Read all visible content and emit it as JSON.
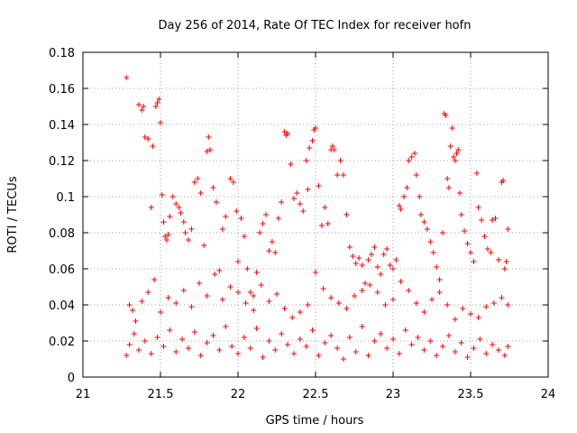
{
  "chart_data": {
    "type": "scatter",
    "title": "Day 256 of 2014, Rate Of TEC Index for receiver hofn",
    "xlabel": "GPS time / hours",
    "ylabel": "ROTI / TECUs",
    "xlim": [
      21,
      24
    ],
    "ylim": [
      0,
      0.18
    ],
    "x_ticks": [
      21,
      21.5,
      22,
      22.5,
      23,
      23.5,
      24
    ],
    "y_ticks": [
      0,
      0.02,
      0.04,
      0.06,
      0.08,
      0.1,
      0.12,
      0.14,
      0.16,
      0.18
    ],
    "x_tick_labels": [
      "21",
      "21.5",
      "22",
      "22.5",
      "23",
      "23.5",
      "24"
    ],
    "y_tick_labels": [
      "0",
      "0.02",
      "0.04",
      "0.06",
      "0.08",
      "0.1",
      "0.12",
      "0.14",
      "0.16",
      "0.18"
    ],
    "grid": true,
    "marker": "+",
    "color": "#ff0000",
    "series": [
      {
        "name": "ROTI",
        "points": [
          [
            21.28,
            0.166
          ],
          [
            21.36,
            0.151
          ],
          [
            21.38,
            0.148
          ],
          [
            21.39,
            0.15
          ],
          [
            21.4,
            0.133
          ],
          [
            21.42,
            0.132
          ],
          [
            21.45,
            0.128
          ],
          [
            21.47,
            0.15
          ],
          [
            21.48,
            0.152
          ],
          [
            21.49,
            0.154
          ],
          [
            21.5,
            0.141
          ],
          [
            21.44,
            0.094
          ],
          [
            21.51,
            0.101
          ],
          [
            21.52,
            0.086
          ],
          [
            21.53,
            0.078
          ],
          [
            21.54,
            0.076
          ],
          [
            21.55,
            0.079
          ],
          [
            21.56,
            0.089
          ],
          [
            21.58,
            0.1
          ],
          [
            21.6,
            0.096
          ],
          [
            21.62,
            0.094
          ],
          [
            21.63,
            0.091
          ],
          [
            21.65,
            0.086
          ],
          [
            21.66,
            0.08
          ],
          [
            21.68,
            0.076
          ],
          [
            21.7,
            0.082
          ],
          [
            21.72,
            0.108
          ],
          [
            21.74,
            0.11
          ],
          [
            21.76,
            0.102
          ],
          [
            21.78,
            0.073
          ],
          [
            21.8,
            0.125
          ],
          [
            21.81,
            0.133
          ],
          [
            21.82,
            0.126
          ],
          [
            21.84,
            0.105
          ],
          [
            21.86,
            0.097
          ],
          [
            21.88,
            0.059
          ],
          [
            21.9,
            0.082
          ],
          [
            21.92,
            0.089
          ],
          [
            21.95,
            0.11
          ],
          [
            21.97,
            0.108
          ],
          [
            21.99,
            0.092
          ],
          [
            22.0,
            0.064
          ],
          [
            22.02,
            0.088
          ],
          [
            22.04,
            0.078
          ],
          [
            22.06,
            0.06
          ],
          [
            22.08,
            0.047
          ],
          [
            22.1,
            0.045
          ],
          [
            22.12,
            0.058
          ],
          [
            22.14,
            0.08
          ],
          [
            22.16,
            0.085
          ],
          [
            22.18,
            0.09
          ],
          [
            22.2,
            0.07
          ],
          [
            22.22,
            0.075
          ],
          [
            22.24,
            0.069
          ],
          [
            22.26,
            0.088
          ],
          [
            22.28,
            0.097
          ],
          [
            22.3,
            0.136
          ],
          [
            22.31,
            0.134
          ],
          [
            22.32,
            0.135
          ],
          [
            22.34,
            0.118
          ],
          [
            22.36,
            0.099
          ],
          [
            22.38,
            0.102
          ],
          [
            22.4,
            0.096
          ],
          [
            22.42,
            0.092
          ],
          [
            22.44,
            0.12
          ],
          [
            22.45,
            0.104
          ],
          [
            22.46,
            0.127
          ],
          [
            22.48,
            0.131
          ],
          [
            22.49,
            0.137
          ],
          [
            22.5,
            0.138
          ],
          [
            22.52,
            0.106
          ],
          [
            22.54,
            0.084
          ],
          [
            22.56,
            0.094
          ],
          [
            22.58,
            0.085
          ],
          [
            22.6,
            0.126
          ],
          [
            22.61,
            0.128
          ],
          [
            22.62,
            0.126
          ],
          [
            22.64,
            0.112
          ],
          [
            22.66,
            0.12
          ],
          [
            22.68,
            0.112
          ],
          [
            22.7,
            0.09
          ],
          [
            22.72,
            0.072
          ],
          [
            22.74,
            0.067
          ],
          [
            22.76,
            0.063
          ],
          [
            22.78,
            0.066
          ],
          [
            22.8,
            0.062
          ],
          [
            22.82,
            0.052
          ],
          [
            22.84,
            0.065
          ],
          [
            22.86,
            0.068
          ],
          [
            22.88,
            0.072
          ],
          [
            22.9,
            0.061
          ],
          [
            22.92,
            0.057
          ],
          [
            22.94,
            0.068
          ],
          [
            22.96,
            0.071
          ],
          [
            22.98,
            0.062
          ],
          [
            23.0,
            0.06
          ],
          [
            23.02,
            0.065
          ],
          [
            23.04,
            0.095
          ],
          [
            23.05,
            0.093
          ],
          [
            23.07,
            0.1
          ],
          [
            23.09,
            0.105
          ],
          [
            23.1,
            0.12
          ],
          [
            23.12,
            0.122
          ],
          [
            23.14,
            0.124
          ],
          [
            23.15,
            0.112
          ],
          [
            23.17,
            0.1
          ],
          [
            23.18,
            0.09
          ],
          [
            23.2,
            0.086
          ],
          [
            23.22,
            0.082
          ],
          [
            23.24,
            0.075
          ],
          [
            23.26,
            0.069
          ],
          [
            23.28,
            0.061
          ],
          [
            23.3,
            0.054
          ],
          [
            23.32,
            0.08
          ],
          [
            23.33,
            0.146
          ],
          [
            23.34,
            0.145
          ],
          [
            23.35,
            0.11
          ],
          [
            23.36,
            0.105
          ],
          [
            23.37,
            0.128
          ],
          [
            23.38,
            0.138
          ],
          [
            23.39,
            0.122
          ],
          [
            23.4,
            0.12
          ],
          [
            23.41,
            0.124
          ],
          [
            23.42,
            0.126
          ],
          [
            23.43,
            0.102
          ],
          [
            23.44,
            0.09
          ],
          [
            23.46,
            0.081
          ],
          [
            23.48,
            0.074
          ],
          [
            23.5,
            0.069
          ],
          [
            23.52,
            0.064
          ],
          [
            23.54,
            0.113
          ],
          [
            23.55,
            0.094
          ],
          [
            23.57,
            0.087
          ],
          [
            23.59,
            0.078
          ],
          [
            23.61,
            0.071
          ],
          [
            23.63,
            0.069
          ],
          [
            23.64,
            0.087
          ],
          [
            23.66,
            0.088
          ],
          [
            23.68,
            0.065
          ],
          [
            23.7,
            0.108
          ],
          [
            23.71,
            0.109
          ],
          [
            23.72,
            0.06
          ],
          [
            23.73,
            0.064
          ],
          [
            23.74,
            0.082
          ],
          [
            21.3,
            0.04
          ],
          [
            21.32,
            0.037
          ],
          [
            21.34,
            0.031
          ],
          [
            21.38,
            0.042
          ],
          [
            21.42,
            0.047
          ],
          [
            21.46,
            0.054
          ],
          [
            21.5,
            0.036
          ],
          [
            21.55,
            0.044
          ],
          [
            21.6,
            0.041
          ],
          [
            21.65,
            0.048
          ],
          [
            21.7,
            0.039
          ],
          [
            21.75,
            0.052
          ],
          [
            21.8,
            0.045
          ],
          [
            21.85,
            0.057
          ],
          [
            21.9,
            0.043
          ],
          [
            21.95,
            0.05
          ],
          [
            22.0,
            0.047
          ],
          [
            22.05,
            0.041
          ],
          [
            22.1,
            0.037
          ],
          [
            22.15,
            0.051
          ],
          [
            22.2,
            0.042
          ],
          [
            22.25,
            0.046
          ],
          [
            22.3,
            0.038
          ],
          [
            22.35,
            0.033
          ],
          [
            22.4,
            0.036
          ],
          [
            22.45,
            0.04
          ],
          [
            22.5,
            0.058
          ],
          [
            22.55,
            0.049
          ],
          [
            22.6,
            0.044
          ],
          [
            22.65,
            0.041
          ],
          [
            22.7,
            0.038
          ],
          [
            22.75,
            0.045
          ],
          [
            22.8,
            0.048
          ],
          [
            22.85,
            0.051
          ],
          [
            22.9,
            0.047
          ],
          [
            22.95,
            0.04
          ],
          [
            23.0,
            0.043
          ],
          [
            23.05,
            0.053
          ],
          [
            23.1,
            0.048
          ],
          [
            23.15,
            0.041
          ],
          [
            23.2,
            0.036
          ],
          [
            23.25,
            0.043
          ],
          [
            23.3,
            0.047
          ],
          [
            23.35,
            0.04
          ],
          [
            23.4,
            0.032
          ],
          [
            23.45,
            0.038
          ],
          [
            23.5,
            0.035
          ],
          [
            23.55,
            0.033
          ],
          [
            23.6,
            0.039
          ],
          [
            23.65,
            0.041
          ],
          [
            23.7,
            0.044
          ],
          [
            23.74,
            0.04
          ],
          [
            21.28,
            0.012
          ],
          [
            21.3,
            0.018
          ],
          [
            21.33,
            0.024
          ],
          [
            21.36,
            0.015
          ],
          [
            21.4,
            0.02
          ],
          [
            21.44,
            0.013
          ],
          [
            21.48,
            0.022
          ],
          [
            21.52,
            0.017
          ],
          [
            21.56,
            0.026
          ],
          [
            21.6,
            0.014
          ],
          [
            21.64,
            0.021
          ],
          [
            21.68,
            0.016
          ],
          [
            21.72,
            0.025
          ],
          [
            21.76,
            0.012
          ],
          [
            21.8,
            0.019
          ],
          [
            21.84,
            0.023
          ],
          [
            21.88,
            0.015
          ],
          [
            21.92,
            0.028
          ],
          [
            21.96,
            0.017
          ],
          [
            22.0,
            0.013
          ],
          [
            22.04,
            0.022
          ],
          [
            22.08,
            0.016
          ],
          [
            22.12,
            0.027
          ],
          [
            22.16,
            0.011
          ],
          [
            22.2,
            0.02
          ],
          [
            22.24,
            0.015
          ],
          [
            22.28,
            0.024
          ],
          [
            22.32,
            0.018
          ],
          [
            22.36,
            0.013
          ],
          [
            22.4,
            0.021
          ],
          [
            22.44,
            0.017
          ],
          [
            22.48,
            0.026
          ],
          [
            22.52,
            0.012
          ],
          [
            22.56,
            0.019
          ],
          [
            22.6,
            0.023
          ],
          [
            22.64,
            0.016
          ],
          [
            22.68,
            0.01
          ],
          [
            22.72,
            0.022
          ],
          [
            22.76,
            0.014
          ],
          [
            22.8,
            0.028
          ],
          [
            22.84,
            0.012
          ],
          [
            22.88,
            0.02
          ],
          [
            22.92,
            0.024
          ],
          [
            22.96,
            0.016
          ],
          [
            23.0,
            0.021
          ],
          [
            23.04,
            0.013
          ],
          [
            23.08,
            0.026
          ],
          [
            23.12,
            0.018
          ],
          [
            23.16,
            0.022
          ],
          [
            23.2,
            0.015
          ],
          [
            23.24,
            0.02
          ],
          [
            23.28,
            0.012
          ],
          [
            23.32,
            0.017
          ],
          [
            23.36,
            0.023
          ],
          [
            23.4,
            0.014
          ],
          [
            23.44,
            0.019
          ],
          [
            23.48,
            0.011
          ],
          [
            23.52,
            0.016
          ],
          [
            23.56,
            0.021
          ],
          [
            23.6,
            0.013
          ],
          [
            23.64,
            0.018
          ],
          [
            23.68,
            0.015
          ],
          [
            23.72,
            0.012
          ],
          [
            23.74,
            0.017
          ]
        ]
      }
    ]
  }
}
